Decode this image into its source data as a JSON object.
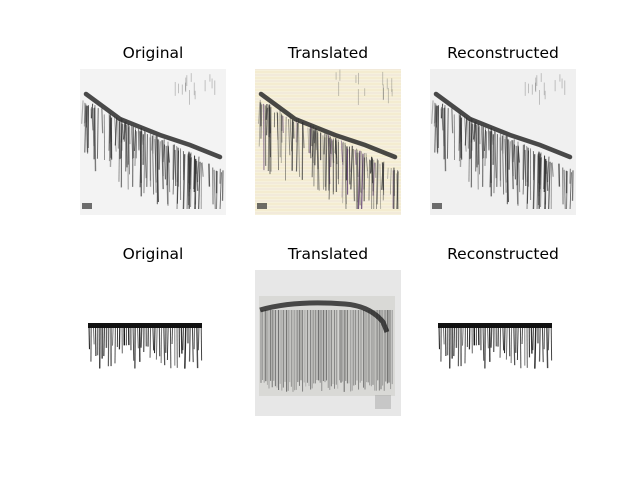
{
  "figure": {
    "rows": [
      {
        "panels": [
          {
            "title": "Original",
            "style": "spectrogram-diagonal",
            "tint": "#f3f3f3"
          },
          {
            "title": "Translated",
            "style": "spectrogram-diagonal-colored",
            "tint": "#f6f1dc"
          },
          {
            "title": "Reconstructed",
            "style": "spectrogram-diagonal",
            "tint": "#f0f0f0"
          }
        ]
      },
      {
        "panels": [
          {
            "title": "Original",
            "style": "bar-cluster",
            "tint": "#ffffff"
          },
          {
            "title": "Translated",
            "style": "dense-block",
            "tint": "#e6e6e6"
          },
          {
            "title": "Reconstructed",
            "style": "bar-cluster",
            "tint": "#ffffff"
          }
        ]
      }
    ]
  }
}
